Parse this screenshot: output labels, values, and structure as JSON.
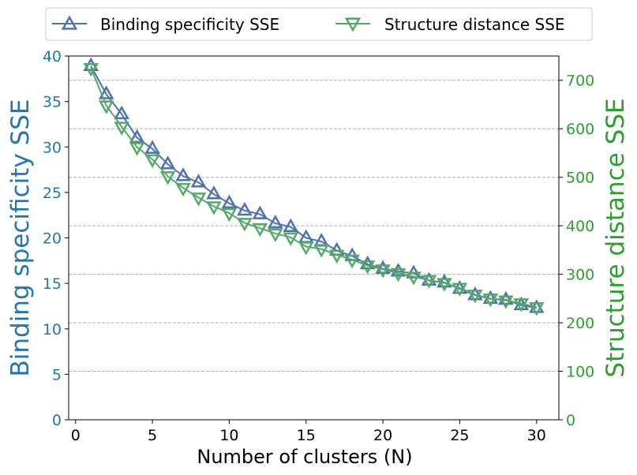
{
  "chart_data": {
    "type": "line",
    "xlabel": "Number of clusters (N)",
    "ylabel_left": "Binding specificity SSE",
    "ylabel_right": "Structure distance SSE",
    "xlim": [
      -0.45,
      31.45
    ],
    "xticks": [
      0,
      5,
      10,
      15,
      20,
      25,
      30
    ],
    "ylim_left": [
      0,
      40
    ],
    "yticks_left": [
      0,
      5,
      10,
      15,
      20,
      25,
      30,
      35,
      40
    ],
    "ylim_right": [
      0,
      750
    ],
    "yticks_right": [
      0,
      100,
      200,
      300,
      400,
      500,
      600,
      700
    ],
    "grid": "horizontal dashed, right axis",
    "legend_position": "top-center, above plot",
    "colors": {
      "left_axis": "#1f77b4",
      "right_axis": "#2ca02c",
      "series_binding": "#4c72b0",
      "series_structure": "#55a868",
      "grid": "#b0b0b0"
    },
    "x": [
      1,
      2,
      3,
      4,
      5,
      6,
      7,
      8,
      9,
      10,
      11,
      12,
      13,
      14,
      15,
      16,
      17,
      18,
      19,
      20,
      21,
      22,
      23,
      24,
      25,
      26,
      27,
      28,
      29,
      30
    ],
    "series": [
      {
        "name": "Binding specificity SSE",
        "axis": "left",
        "marker": "triangle-up",
        "values": [
          38.9,
          35.8,
          33.6,
          31.0,
          29.8,
          28.1,
          26.8,
          26.1,
          24.8,
          23.8,
          23.0,
          22.6,
          21.6,
          21.2,
          20.0,
          19.6,
          18.6,
          18.0,
          17.1,
          16.6,
          16.3,
          16.1,
          15.3,
          15.1,
          14.4,
          13.7,
          13.3,
          13.2,
          12.6,
          12.3
        ]
      },
      {
        "name": "Structure distance SSE",
        "axis": "right",
        "marker": "triangle-down",
        "values": [
          725,
          648,
          604,
          562,
          537,
          502,
          478,
          458,
          440,
          426,
          406,
          395,
          384,
          376,
          357,
          352,
          340,
          330,
          318,
          310,
          302,
          295,
          288,
          282,
          272,
          258,
          250,
          246,
          240,
          232
        ]
      }
    ]
  }
}
